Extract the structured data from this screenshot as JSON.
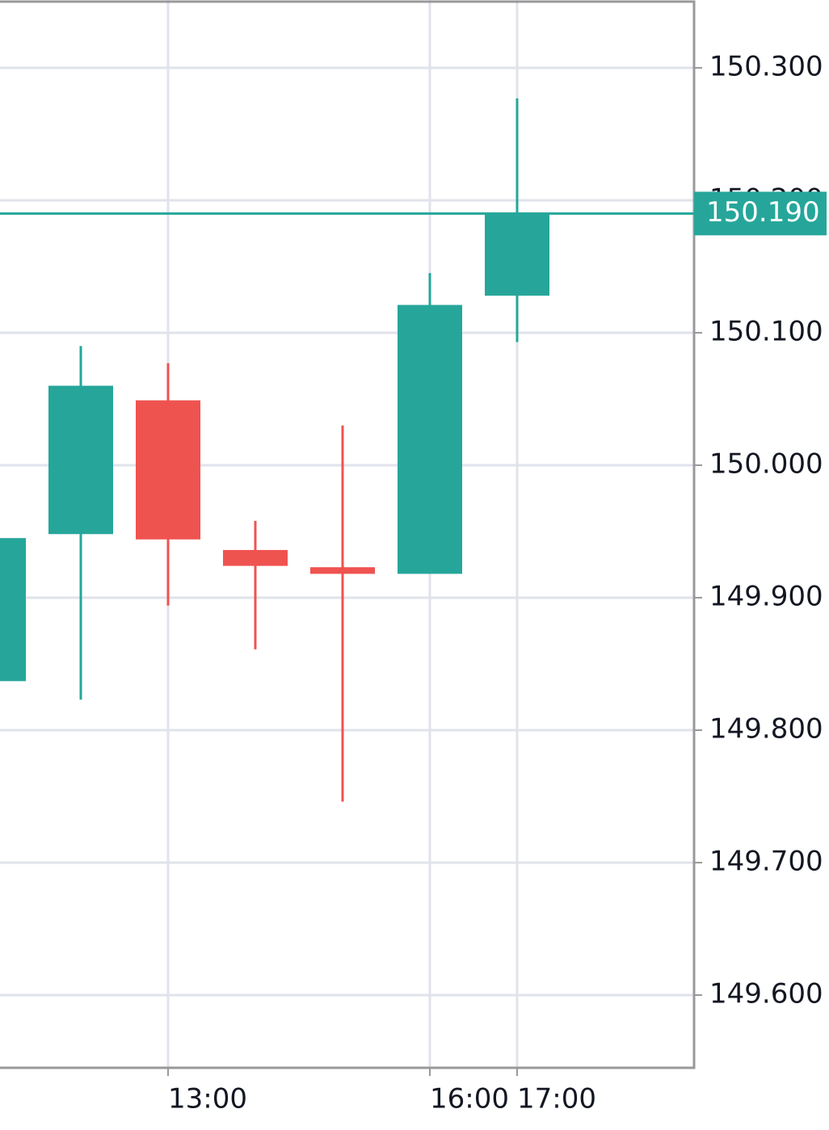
{
  "chart_data": {
    "type": "candlestick",
    "x": [
      null,
      null,
      "13:00",
      null,
      null,
      "16:00",
      "17:00"
    ],
    "open": [
      149.837,
      149.948,
      150.049,
      149.936,
      149.923,
      149.918,
      150.128
    ],
    "high": [
      149.95,
      150.09,
      150.077,
      149.958,
      150.03,
      150.145,
      150.277
    ],
    "low": [
      149.83,
      149.823,
      149.894,
      149.861,
      149.746,
      149.918,
      150.093
    ],
    "close": [
      149.945,
      150.06,
      149.944,
      149.924,
      149.918,
      150.121,
      150.19
    ],
    "up_color": "#26a69a",
    "down_color": "#ef5350",
    "ylim": [
      149.5451,
      150.3512
    ],
    "yticks": [
      {
        "value": 149.6,
        "label": "149.600"
      },
      {
        "value": 149.7,
        "label": "149.700"
      },
      {
        "value": 149.8,
        "label": "149.800"
      },
      {
        "value": 149.9,
        "label": "149.900"
      },
      {
        "value": 150.0,
        "label": "150.000"
      },
      {
        "value": 150.1,
        "label": "150.100"
      },
      {
        "value": 150.2,
        "label": "150.200"
      },
      {
        "value": 150.3,
        "label": "150.300"
      }
    ],
    "last_price": {
      "value": 150.19,
      "label": "150.190"
    },
    "grid": true
  }
}
